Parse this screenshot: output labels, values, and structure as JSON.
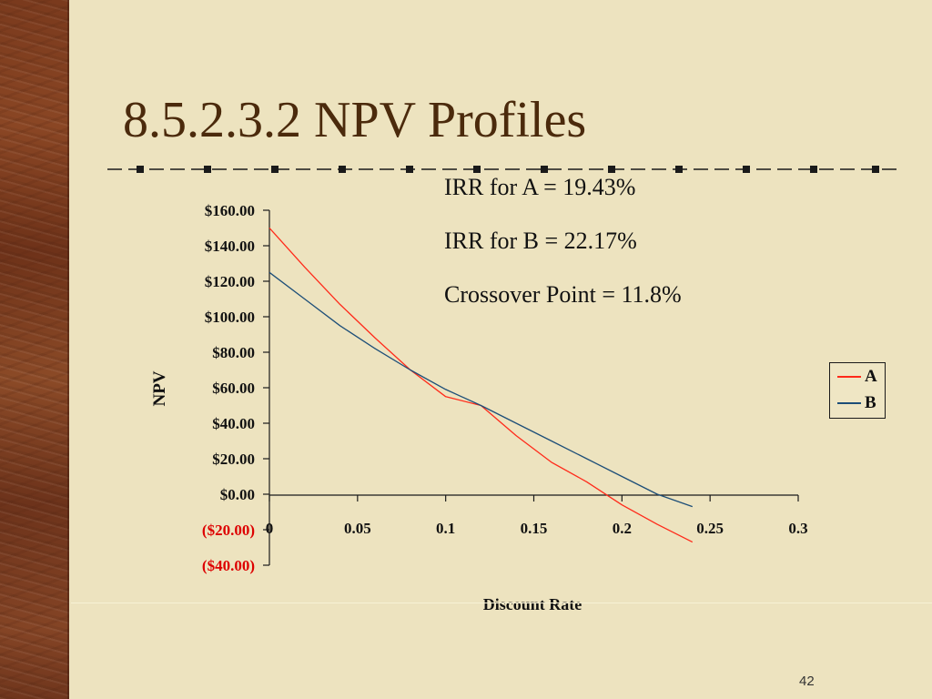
{
  "slide": {
    "title": "8.5.2.3.2 NPV Profiles",
    "page_number": "42",
    "notes": [
      "IRR for A = 19.43%",
      "IRR for B = 22.17%",
      "Crossover Point = 11.8%"
    ]
  },
  "colors": {
    "series_a": "#ff2a1a",
    "series_b": "#1d4e78",
    "negative_tick": "#dd0000",
    "title": "#4b2a0c"
  },
  "chart_data": {
    "type": "line",
    "title": "",
    "xlabel": "Discount Rate",
    "ylabel": "NPV",
    "xlim": [
      0,
      0.3
    ],
    "ylim": [
      -40,
      160
    ],
    "x_ticks": [
      0,
      0.05,
      0.1,
      0.15,
      0.2,
      0.25,
      0.3
    ],
    "x_tick_labels": [
      "0",
      "0.05",
      "0.1",
      "0.15",
      "0.2",
      "0.25",
      "0.3"
    ],
    "y_ticks": [
      -40,
      -20,
      0,
      20,
      40,
      60,
      80,
      100,
      120,
      140,
      160
    ],
    "y_tick_labels": [
      "($40.00)",
      "($20.00)",
      "$0.00",
      "$20.00",
      "$40.00",
      "$60.00",
      "$80.00",
      "$100.00",
      "$120.00",
      "$140.00",
      "$160.00"
    ],
    "grid": false,
    "legend_position": "right",
    "series": [
      {
        "name": "A",
        "color_key": "series_a",
        "x": [
          0,
          0.02,
          0.04,
          0.06,
          0.08,
          0.1,
          0.12,
          0.14,
          0.16,
          0.18,
          0.2,
          0.22,
          0.24
        ],
        "y": [
          150,
          128,
          107,
          88,
          70,
          55,
          50,
          33,
          18,
          7,
          -6,
          -17,
          -27
        ]
      },
      {
        "name": "B",
        "color_key": "series_b",
        "x": [
          0,
          0.02,
          0.04,
          0.06,
          0.08,
          0.1,
          0.12,
          0.14,
          0.16,
          0.18,
          0.2,
          0.22,
          0.24
        ],
        "y": [
          125,
          110,
          95,
          82,
          70,
          59,
          50,
          40,
          30,
          20,
          10,
          0,
          -7
        ]
      }
    ]
  }
}
